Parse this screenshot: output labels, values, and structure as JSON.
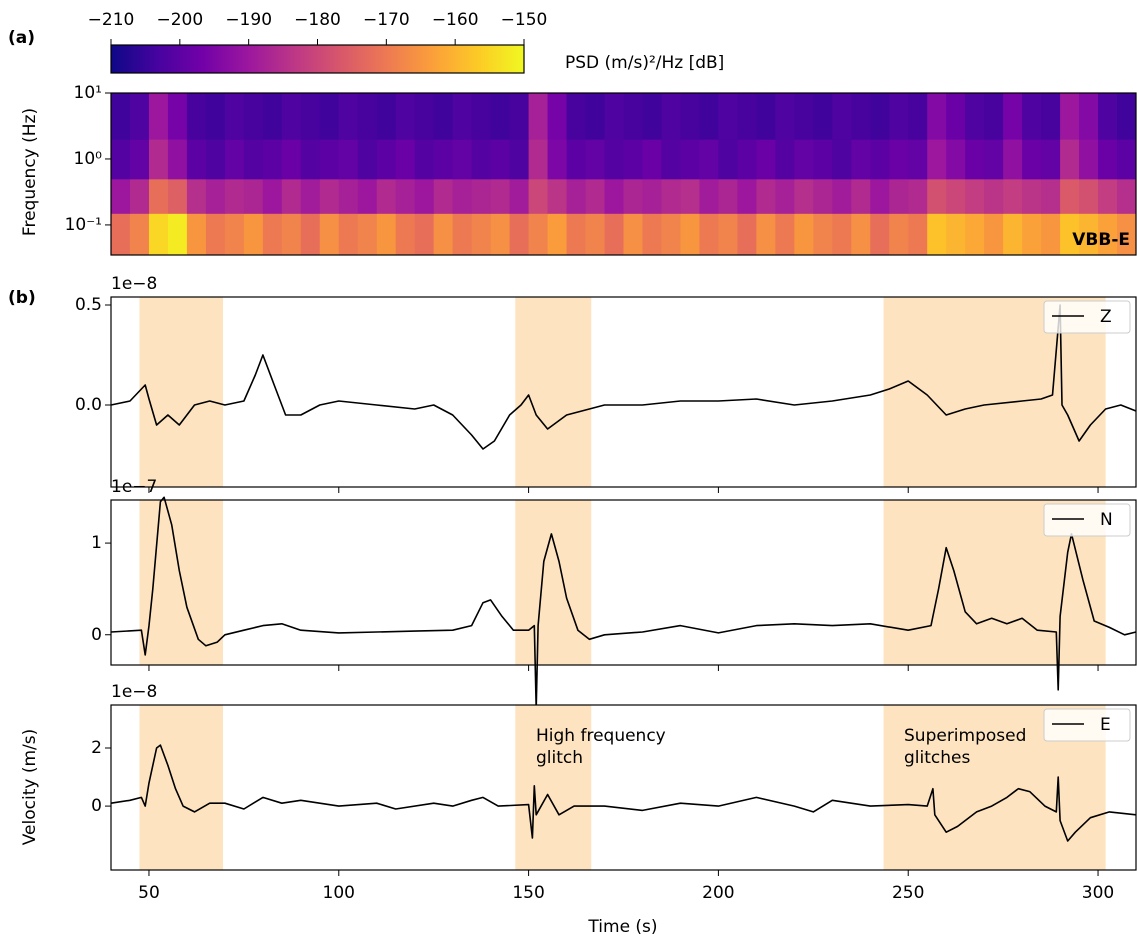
{
  "chart_data": [
    {
      "type": "heatmap",
      "panel_label": "(a)",
      "ylabel": "Frequency (Hz)",
      "annotation": "VBB-E",
      "colormap": "plasma",
      "clim": [
        -210,
        -150
      ],
      "colorbar": {
        "label": "PSD (m/s)²/Hz [dB]",
        "ticks": [
          {
            "value": -210,
            "label": "−210"
          },
          {
            "value": -200,
            "label": "−200"
          },
          {
            "value": -190,
            "label": "−190"
          },
          {
            "value": -180,
            "label": "−180"
          },
          {
            "value": -170,
            "label": "−170"
          },
          {
            "value": -160,
            "label": "−160"
          },
          {
            "value": -150,
            "label": "−150"
          }
        ]
      },
      "xlim": [
        40,
        310
      ],
      "yscale": "log",
      "ylim": [
        0.035,
        10
      ],
      "yticks": [
        {
          "value": 0.1,
          "label": "10⁻¹"
        },
        {
          "value": 1,
          "label": "10⁰"
        },
        {
          "value": 10,
          "label": "10¹"
        }
      ],
      "x_edges": [
        40,
        45,
        50,
        55,
        60,
        65,
        70,
        75,
        80,
        85,
        90,
        95,
        100,
        105,
        110,
        115,
        120,
        125,
        130,
        135,
        140,
        145,
        150,
        155,
        160,
        165,
        170,
        175,
        180,
        185,
        190,
        195,
        200,
        205,
        210,
        215,
        220,
        225,
        230,
        235,
        240,
        245,
        250,
        255,
        260,
        265,
        270,
        275,
        280,
        285,
        290,
        295,
        300,
        305,
        310
      ],
      "y_edges": [
        0.035,
        0.15,
        0.5,
        2,
        10
      ],
      "z": [
        [
          -172,
          -168,
          -155,
          -152,
          -165,
          -170,
          -168,
          -165,
          -170,
          -168,
          -172,
          -166,
          -170,
          -168,
          -165,
          -170,
          -172,
          -166,
          -170,
          -168,
          -166,
          -172,
          -168,
          -164,
          -170,
          -168,
          -172,
          -166,
          -170,
          -168,
          -165,
          -170,
          -168,
          -172,
          -166,
          -170,
          -165,
          -168,
          -170,
          -166,
          -172,
          -168,
          -170,
          -158,
          -160,
          -162,
          -165,
          -160,
          -163,
          -165,
          -158,
          -160,
          -163,
          -166
        ],
        [
          -190,
          -186,
          -172,
          -175,
          -185,
          -188,
          -186,
          -187,
          -190,
          -186,
          -189,
          -186,
          -188,
          -190,
          -186,
          -188,
          -190,
          -186,
          -188,
          -187,
          -186,
          -189,
          -180,
          -184,
          -188,
          -186,
          -190,
          -187,
          -188,
          -186,
          -185,
          -189,
          -187,
          -190,
          -186,
          -188,
          -185,
          -187,
          -189,
          -186,
          -190,
          -187,
          -186,
          -178,
          -180,
          -182,
          -184,
          -182,
          -184,
          -185,
          -176,
          -178,
          -182,
          -185
        ],
        [
          -201,
          -199,
          -186,
          -192,
          -200,
          -202,
          -199,
          -201,
          -200,
          -198,
          -201,
          -200,
          -199,
          -202,
          -200,
          -198,
          -201,
          -200,
          -199,
          -201,
          -200,
          -202,
          -186,
          -195,
          -200,
          -199,
          -201,
          -200,
          -198,
          -201,
          -200,
          -199,
          -202,
          -200,
          -198,
          -201,
          -199,
          -200,
          -202,
          -199,
          -200,
          -198,
          -199,
          -190,
          -194,
          -198,
          -199,
          -192,
          -198,
          -199,
          -186,
          -192,
          -198,
          -200
        ],
        [
          -204,
          -202,
          -190,
          -196,
          -203,
          -204,
          -202,
          -203,
          -204,
          -202,
          -203,
          -204,
          -202,
          -203,
          -204,
          -202,
          -203,
          -204,
          -202,
          -203,
          -204,
          -203,
          -188,
          -196,
          -203,
          -204,
          -202,
          -203,
          -204,
          -202,
          -203,
          -204,
          -202,
          -203,
          -204,
          -202,
          -203,
          -204,
          -202,
          -203,
          -204,
          -202,
          -203,
          -194,
          -198,
          -202,
          -203,
          -196,
          -202,
          -203,
          -190,
          -194,
          -202,
          -204
        ]
      ]
    },
    {
      "type": "line",
      "panel_label": "(b)",
      "offset_label": "1e−8",
      "xlim": [
        40,
        310
      ],
      "ylim": [
        -0.41,
        0.54
      ],
      "yticks": [
        {
          "value": 0,
          "label": "0.0"
        },
        0.5
      ],
      "legend": "upper right",
      "shaded_regions": [
        [
          47.5,
          69.5
        ],
        [
          146.5,
          166.5
        ],
        [
          243.5,
          302
        ]
      ],
      "shade_color": "#fde3bf",
      "x": [
        40,
        45,
        49,
        50,
        52,
        55,
        58,
        62,
        66,
        70,
        75,
        78,
        80,
        83,
        86,
        90,
        95,
        100,
        110,
        120,
        125,
        130,
        135,
        138,
        141,
        145,
        148,
        150,
        152,
        155,
        160,
        170,
        180,
        190,
        200,
        210,
        220,
        230,
        240,
        245,
        250,
        255,
        260,
        265,
        270,
        280,
        285,
        288,
        290,
        290.5,
        292,
        295,
        298,
        302,
        306,
        310
      ],
      "series": [
        {
          "name": "Z",
          "color": "#000000",
          "values": [
            0,
            0.02,
            0.1,
            0.03,
            -0.1,
            -0.05,
            -0.1,
            0,
            0.02,
            0,
            0.02,
            0.15,
            0.25,
            0.1,
            -0.05,
            -0.05,
            0,
            0.02,
            0,
            -0.02,
            0,
            -0.05,
            -0.15,
            -0.22,
            -0.18,
            -0.05,
            0,
            0.05,
            -0.05,
            -0.12,
            -0.05,
            0,
            0,
            0.02,
            0.02,
            0.03,
            0,
            0.02,
            0.05,
            0.08,
            0.12,
            0.05,
            -0.05,
            -0.02,
            0,
            0.02,
            0.03,
            0.05,
            0.5,
            0,
            -0.05,
            -0.18,
            -0.1,
            -0.02,
            0,
            -0.03
          ]
        }
      ]
    },
    {
      "type": "line",
      "offset_label": "1e−7",
      "xlim": [
        40,
        310
      ],
      "ylim": [
        -0.33,
        1.47
      ],
      "yticks": [
        0,
        1
      ],
      "legend": "upper right",
      "shaded_regions": [
        [
          47.5,
          69.5
        ],
        [
          146.5,
          166.5
        ],
        [
          243.5,
          302
        ]
      ],
      "shade_color": "#fde3bf",
      "x": [
        40,
        48,
        49,
        50,
        51,
        53,
        54,
        56,
        58,
        60,
        63,
        65,
        68,
        70,
        75,
        80,
        85,
        90,
        100,
        110,
        120,
        130,
        135,
        138,
        140,
        143,
        146,
        150,
        151.5,
        152,
        152.5,
        154,
        156,
        158,
        160,
        163,
        166,
        170,
        180,
        190,
        200,
        210,
        220,
        230,
        240,
        250,
        256,
        256.5,
        258,
        260,
        262,
        265,
        268,
        272,
        276,
        280,
        284,
        289,
        289.5,
        290,
        292,
        293,
        296,
        299,
        303,
        307,
        310
      ],
      "series": [
        {
          "name": "N",
          "color": "#000000",
          "values": [
            0.03,
            0.05,
            -0.22,
            0.1,
            0.5,
            1.45,
            1.5,
            1.2,
            0.7,
            0.3,
            -0.05,
            -0.12,
            -0.08,
            0,
            0.05,
            0.1,
            0.12,
            0.05,
            0.02,
            0.03,
            0.04,
            0.05,
            0.1,
            0.35,
            0.38,
            0.2,
            0.05,
            0.05,
            0.1,
            -0.8,
            0.1,
            0.8,
            1.1,
            0.8,
            0.4,
            0.05,
            -0.05,
            0,
            0.03,
            0.1,
            0.02,
            0.1,
            0.12,
            0.1,
            0.12,
            0.05,
            0.1,
            0.2,
            0.5,
            0.95,
            0.7,
            0.25,
            0.12,
            0.18,
            0.12,
            0.18,
            0.05,
            0.03,
            -0.6,
            0.2,
            0.9,
            1.1,
            0.6,
            0.15,
            0.08,
            0,
            0.03
          ]
        }
      ]
    },
    {
      "type": "line",
      "offset_label": "1e−8",
      "xlabel": "Time (s)",
      "ylabel": "Velocity (m/s)",
      "xlim": [
        40,
        310
      ],
      "ylim": [
        -2.2,
        3.48
      ],
      "xticks": [
        50,
        100,
        150,
        200,
        250,
        300
      ],
      "yticks": [
        0,
        2
      ],
      "legend": "upper right",
      "shaded_regions": [
        [
          47.5,
          69.5
        ],
        [
          146.5,
          166.5
        ],
        [
          243.5,
          302
        ]
      ],
      "shade_color": "#fde3bf",
      "annotations": [
        [
          "High frequency",
          "glitch"
        ],
        [
          "Superimposed",
          "glitches"
        ]
      ],
      "x": [
        40,
        45,
        48,
        49,
        50,
        52,
        53,
        55,
        57,
        59,
        62,
        66,
        70,
        75,
        80,
        85,
        90,
        100,
        110,
        115,
        125,
        130,
        135,
        138,
        142,
        150,
        151,
        151.5,
        152,
        155,
        158,
        162,
        170,
        180,
        190,
        200,
        210,
        220,
        225,
        230,
        240,
        250,
        255,
        256.5,
        257,
        260,
        263,
        268,
        272,
        276,
        279,
        282,
        286,
        289,
        289.5,
        290,
        292,
        294,
        298,
        303,
        310
      ],
      "series": [
        {
          "name": "E",
          "color": "#000000",
          "values": [
            0.1,
            0.2,
            0.3,
            0,
            0.8,
            2,
            2.1,
            1.4,
            0.6,
            0,
            -0.2,
            0.1,
            0.1,
            -0.1,
            0.3,
            0.1,
            0.2,
            0,
            0.1,
            -0.1,
            0.1,
            0,
            0.2,
            0.3,
            0,
            0.05,
            -1.1,
            0.7,
            -0.3,
            0.4,
            -0.3,
            0,
            0,
            -0.15,
            0.1,
            0,
            0.3,
            0,
            -0.2,
            0.2,
            0,
            0.05,
            0,
            0.6,
            -0.3,
            -0.9,
            -0.7,
            -0.2,
            0,
            0.3,
            0.6,
            0.5,
            0,
            -0.2,
            1,
            -0.5,
            -1.2,
            -0.9,
            -0.4,
            -0.2,
            -0.3
          ]
        }
      ]
    }
  ]
}
